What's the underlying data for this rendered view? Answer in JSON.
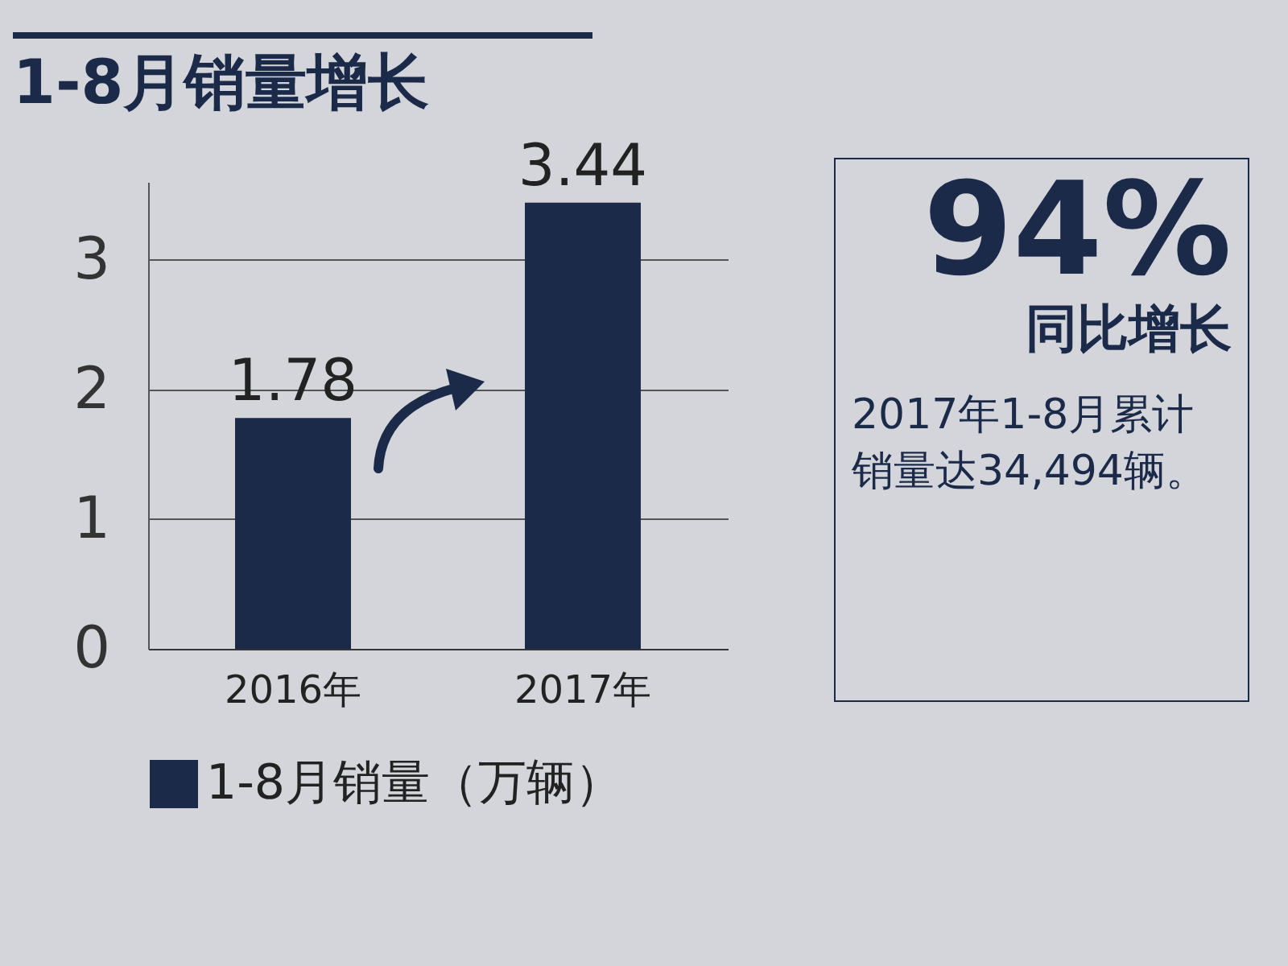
{
  "chart_data": {
    "type": "bar",
    "title": "1-8月销量增长",
    "categories": [
      "2016年",
      "2017年"
    ],
    "series": [
      {
        "name": "1-8月销量（万辆）",
        "color": "#1b2a48",
        "values": [
          1.78,
          3.44
        ]
      }
    ],
    "ylim": [
      0,
      3.6
    ],
    "yticks": [
      0,
      1,
      2,
      3
    ],
    "grid": "y",
    "legend": "bottom",
    "data_labels": true,
    "annotations": [
      "94%",
      "同比增长",
      "2017年1-8月累计销量达34,494辆。"
    ]
  }
}
